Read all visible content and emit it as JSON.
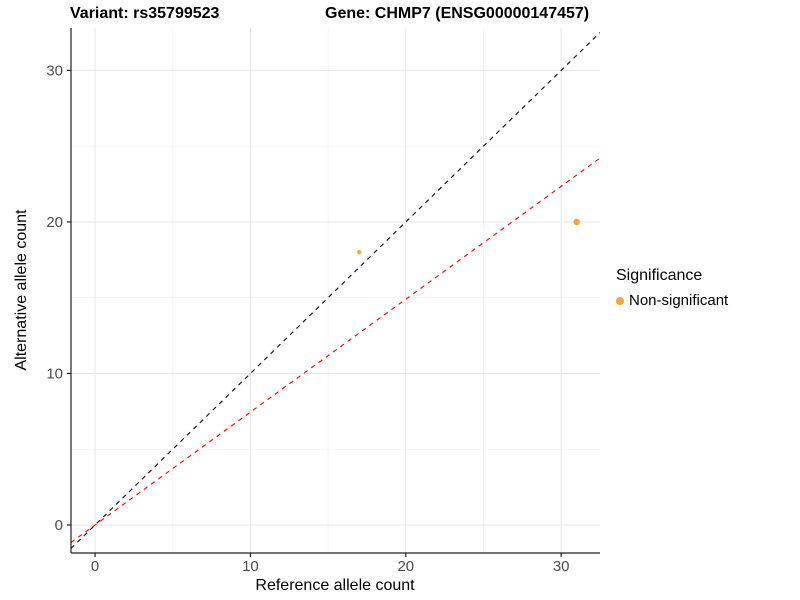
{
  "chart_data": {
    "type": "scatter",
    "title_left": "Variant: rs35799523",
    "title_right": "Gene: CHMP7 (ENSG00000147457)",
    "xlabel": "Reference allele count",
    "ylabel": "Alternative allele count",
    "xlim": [
      -1.55,
      32.5
    ],
    "ylim": [
      -1.85,
      32.8
    ],
    "x_ticks": [
      0,
      10,
      20,
      30
    ],
    "y_ticks": [
      0,
      10,
      20,
      30
    ],
    "x_minor_ticks": [
      5,
      15,
      25
    ],
    "y_minor_ticks": [
      5,
      15,
      25
    ],
    "points": [
      {
        "x": 17,
        "y": 18,
        "r": 2.2,
        "series": "Non-significant"
      },
      {
        "x": 31,
        "y": 20,
        "r": 3.2,
        "series": "Non-significant"
      }
    ],
    "lines": [
      {
        "name": "identity-line",
        "slope": 1.0,
        "intercept": 0,
        "color": "#1a1a1a",
        "style": "dashed"
      },
      {
        "name": "expected-ratio-line",
        "slope": 0.745,
        "intercept": 0,
        "color": "#ee1111",
        "style": "dashed"
      }
    ],
    "legend": {
      "title": "Significance",
      "entries": [
        {
          "label": "Non-significant",
          "color": "#faa43c"
        }
      ]
    },
    "colors": {
      "point": "#faa43c",
      "grid_major": "#e7e7e7",
      "grid_minor": "#f2f2f2",
      "axis_line": "#222222",
      "tick_label": "#4d4d4d"
    }
  }
}
